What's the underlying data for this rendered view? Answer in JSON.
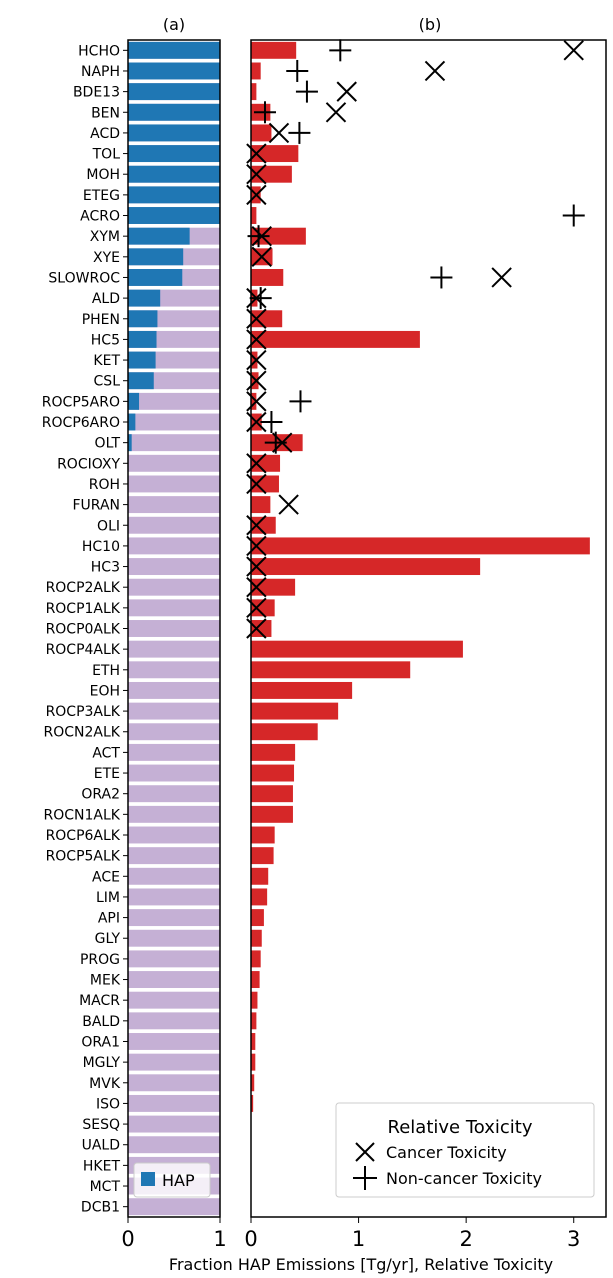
{
  "figure": {
    "xlabel": "Fraction HAP Emissions [Tg/yr], Relative Toxicity"
  },
  "colors": {
    "hap_blue": "#1f77b4",
    "nonhap_lavender": "#c5b0d5",
    "emission_red": "#d62728",
    "marker_black": "#000000"
  },
  "chart_data": [
    {
      "panel_label": "(a)",
      "type": "bar",
      "orientation": "horizontal",
      "stacked": true,
      "xlim": [
        0,
        1
      ],
      "xticks": [
        "0",
        "1"
      ],
      "legend": {
        "position": "bottom-center",
        "entries": [
          "HAP"
        ]
      },
      "categories": [
        "HCHO",
        "NAPH",
        "BDE13",
        "BEN",
        "ACD",
        "TOL",
        "MOH",
        "ETEG",
        "ACRO",
        "XYM",
        "XYE",
        "SLOWROC",
        "ALD",
        "PHEN",
        "HC5",
        "KET",
        "CSL",
        "ROCP5ARO",
        "ROCP6ARO",
        "OLT",
        "ROCIOXY",
        "ROH",
        "FURAN",
        "OLI",
        "HC10",
        "HC3",
        "ROCP2ALK",
        "ROCP1ALK",
        "ROCP0ALK",
        "ROCP4ALK",
        "ETH",
        "EOH",
        "ROCP3ALK",
        "ROCN2ALK",
        "ACT",
        "ETE",
        "ORA2",
        "ROCN1ALK",
        "ROCP6ALK",
        "ROCP5ALK",
        "ACE",
        "LIM",
        "API",
        "GLY",
        "PROG",
        "MEK",
        "MACR",
        "BALD",
        "ORA1",
        "MGLY",
        "MVK",
        "ISO",
        "SESQ",
        "UALD",
        "HKET",
        "MCT",
        "DCB1"
      ],
      "series": [
        {
          "name": "HAP",
          "values": [
            1,
            1,
            1,
            1,
            1,
            1,
            1,
            1,
            1,
            0.67,
            0.6,
            0.59,
            0.35,
            0.32,
            0.31,
            0.3,
            0.28,
            0.12,
            0.08,
            0.04,
            0,
            0,
            0,
            0,
            0,
            0,
            0,
            0,
            0,
            0,
            0,
            0,
            0,
            0,
            0,
            0,
            0,
            0,
            0,
            0,
            0,
            0,
            0,
            0,
            0,
            0,
            0,
            0,
            0,
            0,
            0,
            0,
            0,
            0,
            0,
            0,
            0
          ]
        }
      ]
    },
    {
      "panel_label": "(b)",
      "type": "bar",
      "orientation": "horizontal",
      "xlim": [
        0,
        3.3
      ],
      "xticks": [
        "0",
        "1",
        "2",
        "3"
      ],
      "emissions": [
        0.42,
        0.09,
        0.05,
        0.18,
        0.19,
        0.44,
        0.38,
        0.09,
        0.05,
        0.51,
        0.2,
        0.3,
        0.06,
        0.29,
        1.57,
        0.06,
        0.07,
        0.05,
        0.1,
        0.48,
        0.27,
        0.26,
        0.18,
        0.23,
        3.15,
        2.13,
        0.41,
        0.22,
        0.19,
        1.97,
        1.48,
        0.94,
        0.81,
        0.62,
        0.41,
        0.4,
        0.39,
        0.39,
        0.22,
        0.21,
        0.16,
        0.15,
        0.12,
        0.1,
        0.09,
        0.08,
        0.06,
        0.05,
        0.04,
        0.04,
        0.03,
        0.02,
        0,
        0,
        0,
        0,
        0
      ],
      "cancer_toxicity": [
        3.0,
        1.71,
        0.89,
        0.79,
        0.26,
        0.05,
        0.05,
        0.05,
        null,
        0.1,
        0.1,
        2.33,
        0.05,
        0.05,
        0.05,
        0.05,
        0.05,
        0.05,
        0.05,
        0.29,
        0.05,
        0.05,
        0.35,
        0.05,
        0.05,
        0.05,
        0.05,
        0.05,
        0.05,
        null,
        null,
        null,
        null,
        null,
        null,
        null,
        null,
        null,
        null,
        null,
        null,
        null,
        null,
        null,
        null,
        null,
        null,
        null,
        null,
        null,
        null,
        null,
        null,
        null,
        null,
        null,
        null
      ],
      "noncancer_toxicity": [
        0.83,
        0.43,
        0.52,
        0.13,
        0.45,
        null,
        null,
        null,
        3.0,
        0.07,
        null,
        1.77,
        0.09,
        null,
        null,
        null,
        null,
        0.46,
        0.19,
        0.23,
        null,
        null,
        null,
        null,
        null,
        null,
        null,
        null,
        null,
        null,
        null,
        null,
        null,
        null,
        null,
        null,
        null,
        null,
        null,
        null,
        null,
        null,
        null,
        null,
        null,
        null,
        null,
        null,
        null,
        null,
        null,
        null,
        null,
        null,
        null,
        null,
        null
      ],
      "legend": {
        "position": "bottom-right",
        "title": "Relative Toxicity",
        "entries": [
          "Cancer Toxicity",
          "Non-cancer Toxicity"
        ]
      }
    }
  ]
}
